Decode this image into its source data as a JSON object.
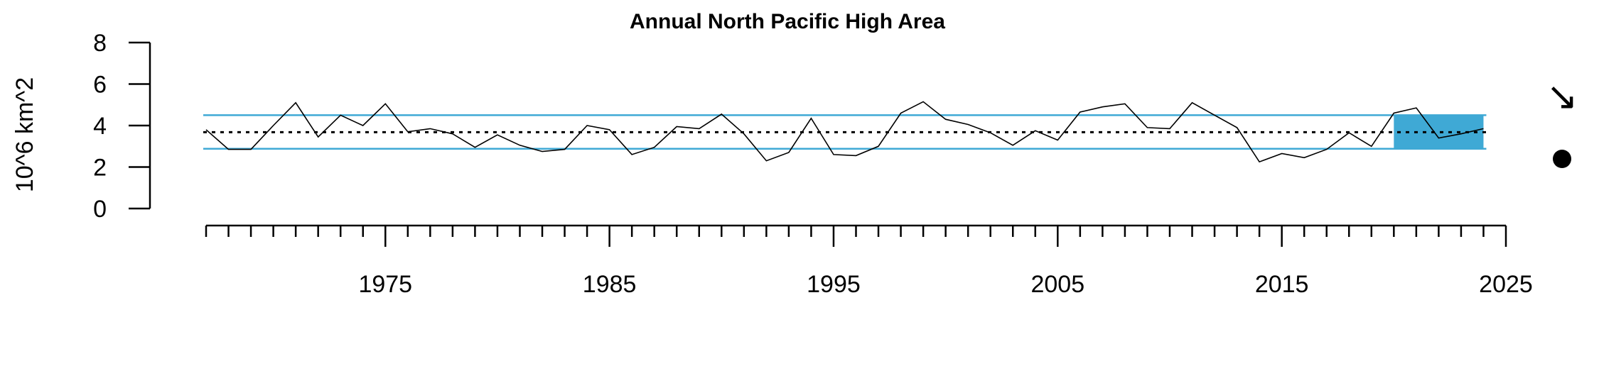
{
  "chart_data": {
    "type": "line",
    "title": "Annual North Pacific High Area",
    "ylabel": "10^6 km^2",
    "xlabel": "",
    "xlim": [
      1967,
      2025
    ],
    "ylim": [
      0,
      8
    ],
    "y_ticks": [
      "0",
      "2",
      "4",
      "6",
      "8"
    ],
    "x_tick_labels": [
      "1975",
      "1985",
      "1995",
      "2005",
      "2015",
      "2025"
    ],
    "x_tick_values": [
      1975,
      1985,
      1995,
      2005,
      2015,
      2025
    ],
    "x_minor_tick_start": 1967,
    "x_minor_tick_end": 2025,
    "series": [
      {
        "x": [
          1967,
          1968,
          1969,
          1970,
          1971,
          1972,
          1973,
          1974,
          1975,
          1976,
          1977,
          1978,
          1979,
          1980,
          1981,
          1982,
          1983,
          1984,
          1985,
          1986,
          1987,
          1988,
          1989,
          1990,
          1991,
          1992,
          1993,
          1994,
          1995,
          1996,
          1997,
          1998,
          1999,
          2000,
          2001,
          2002,
          2003,
          2004,
          2005,
          2006,
          2007,
          2008,
          2009,
          2010,
          2011,
          2012,
          2013,
          2014,
          2015,
          2016,
          2017,
          2018,
          2019,
          2020,
          2021,
          2022,
          2023,
          2024
        ],
        "values": [
          3.8,
          2.85,
          2.85,
          4.0,
          5.1,
          3.45,
          4.5,
          4.0,
          5.05,
          3.7,
          3.85,
          3.6,
          2.95,
          3.55,
          3.05,
          2.75,
          2.85,
          4.0,
          3.8,
          2.6,
          2.95,
          3.95,
          3.85,
          4.55,
          3.6,
          2.3,
          2.7,
          4.35,
          2.6,
          2.55,
          3.0,
          4.6,
          5.15,
          4.3,
          4.05,
          3.65,
          3.05,
          3.75,
          3.3,
          4.65,
          4.9,
          5.05,
          3.9,
          3.85,
          5.1,
          4.5,
          3.9,
          2.25,
          2.65,
          2.45,
          2.85,
          3.65,
          3.0,
          4.6,
          4.85,
          3.4,
          3.6,
          3.85
        ]
      }
    ],
    "mean": 3.68,
    "sd_lower": 2.88,
    "sd_upper": 4.5,
    "highlight_range": [
      2020,
      2024
    ],
    "colors": {
      "line": "#000000",
      "band_lines": "#3fa9d5",
      "highlight": "#3fa9d5",
      "mean_line": "#000000"
    },
    "trend_symbol": "↘",
    "trend_icon": "arrow-down-right-icon",
    "status_icon": "filled-circle-icon"
  }
}
